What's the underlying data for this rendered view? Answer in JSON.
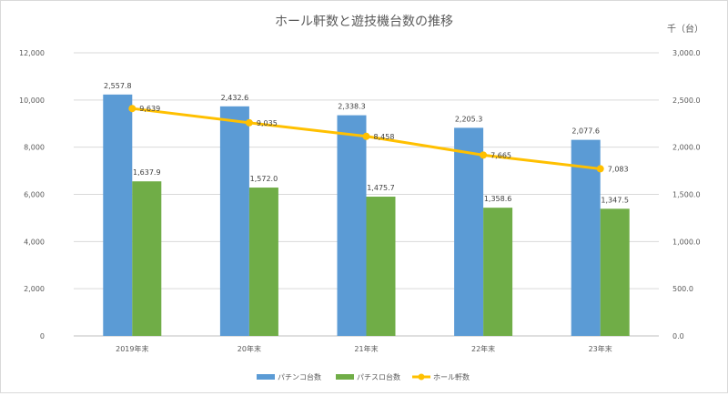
{
  "chart_data": {
    "type": "bar",
    "title": "ホール軒数と遊技機台数の推移",
    "right_unit": "千（台）",
    "categories": [
      "2019年末",
      "20年末",
      "21年末",
      "22年末",
      "23年末"
    ],
    "left_axis": {
      "min": 0,
      "max": 12000,
      "step": 2000,
      "tick_labels": [
        "0",
        "2,000",
        "4,000",
        "6,000",
        "8,000",
        "10,000",
        "12,000"
      ]
    },
    "right_axis": {
      "min": 0,
      "max": 3000,
      "step": 500,
      "tick_labels": [
        "0.0",
        "500.0",
        "1,000.0",
        "1,500.0",
        "2,000.0",
        "2,500.0",
        "3,000.0"
      ]
    },
    "series": [
      {
        "name": "パチンコ台数",
        "kind": "bar",
        "axis": "right",
        "color": "#5b9bd5",
        "values": [
          2557.8,
          2432.6,
          2338.3,
          2205.3,
          2077.6
        ],
        "labels": [
          "2,557.8",
          "2,432.6",
          "2,338.3",
          "2,205.3",
          "2,077.6"
        ]
      },
      {
        "name": "パチスロ台数",
        "kind": "bar",
        "axis": "right",
        "color": "#70ad47",
        "values": [
          1637.9,
          1572.0,
          1475.7,
          1358.6,
          1347.5
        ],
        "labels": [
          "1,637.9",
          "1,572.0",
          "1,475.7",
          "1,358.6",
          "1,347.5"
        ]
      },
      {
        "name": "ホール軒数",
        "kind": "line",
        "axis": "left",
        "color": "#ffc000",
        "values": [
          9639,
          9035,
          8458,
          7665,
          7083
        ],
        "labels": [
          "9,639",
          "9,035",
          "8,458",
          "7,665",
          "7,083"
        ]
      }
    ]
  }
}
